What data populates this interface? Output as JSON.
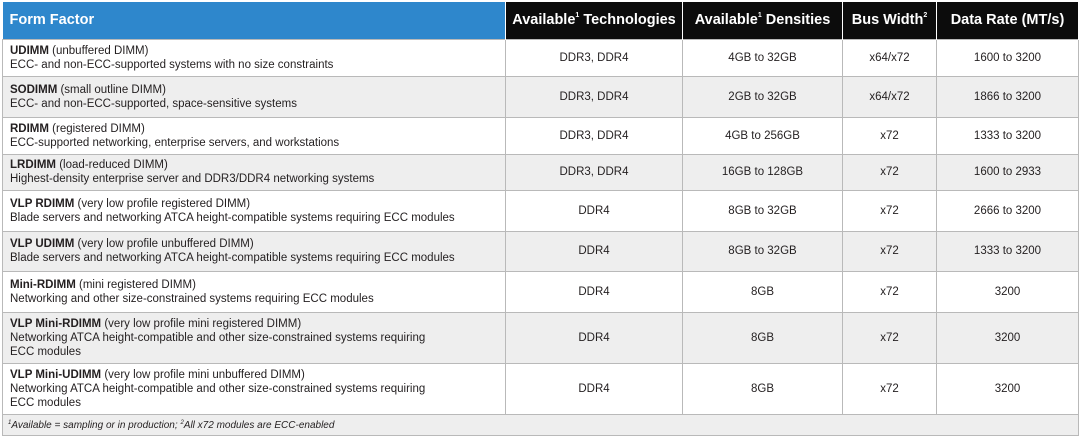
{
  "headers": {
    "form_factor": "Form Factor",
    "technologies": "Available",
    "technologies_rest": " Technologies",
    "densities": "Available",
    "densities_rest": " Densities",
    "bus_width": "Bus Width",
    "data_rate": "Data Rate (MT/s)",
    "sup1": "1",
    "sup2": "2"
  },
  "rows": [
    {
      "name": "UDIMM",
      "full": " (unbuffered DIMM)",
      "desc": "ECC- and non-ECC-supported systems with no size constraints",
      "tech": "DDR3, DDR4",
      "density": "4GB to 32GB",
      "bus": "x64/x72",
      "rate": "1600 to 3200"
    },
    {
      "name": "SODIMM",
      "full": " (small outline DIMM)",
      "desc": "ECC- and non-ECC-supported, space-sensitive systems",
      "tech": "DDR3, DDR4",
      "density": "2GB to 32GB",
      "bus": "x64/x72",
      "rate": "1866 to 3200"
    },
    {
      "name": "RDIMM",
      "full": " (registered DIMM)",
      "desc": "ECC-supported networking, enterprise servers, and workstations",
      "tech": "DDR3, DDR4",
      "density": "4GB to 256GB",
      "bus": "x72",
      "rate": "1333 to 3200"
    },
    {
      "name": "LRDIMM",
      "full": " (load-reduced DIMM)",
      "desc": "Highest-density enterprise server and DDR3/DDR4 networking systems",
      "tech": "DDR3, DDR4",
      "density": "16GB to 128GB",
      "bus": "x72",
      "rate": "1600 to 2933"
    },
    {
      "name": "VLP RDIMM",
      "full": " (very low profile registered DIMM)",
      "desc": "Blade servers and networking ATCA height-compatible systems requiring ECC modules",
      "tech": "DDR4",
      "density": "8GB to 32GB",
      "bus": "x72",
      "rate": "2666 to 3200"
    },
    {
      "name": "VLP UDIMM",
      "full": " (very low profile unbuffered DIMM)",
      "desc": "Blade servers and networking ATCA height-compatible systems requiring ECC modules",
      "tech": "DDR4",
      "density": "8GB to 32GB",
      "bus": "x72",
      "rate": "1333 to 3200"
    },
    {
      "name": "Mini-RDIMM",
      "full": " (mini registered DIMM)",
      "desc": "Networking and other size-constrained systems requiring ECC modules",
      "tech": "DDR4",
      "density": "8GB",
      "bus": "x72",
      "rate": "3200"
    },
    {
      "name": "VLP Mini-RDIMM",
      "full": " (very low profile mini registered DIMM)",
      "desc": "Networking ATCA height-compatible and other size-constrained systems requiring",
      "desc2": "ECC modules",
      "tech": "DDR4",
      "density": "8GB",
      "bus": "x72",
      "rate": "3200"
    },
    {
      "name": "VLP Mini-UDIMM",
      "full": " (very low profile mini unbuffered DIMM)",
      "desc": "Networking ATCA height-compatible and other size-constrained systems requiring",
      "desc2": "ECC modules",
      "tech": "DDR4",
      "density": "8GB",
      "bus": "x72",
      "rate": "3200"
    }
  ],
  "footnote": {
    "sup1": "1",
    "text1": "Available = sampling or in production; ",
    "sup2": "2",
    "text2": "All x72 modules are ECC-enabled"
  }
}
